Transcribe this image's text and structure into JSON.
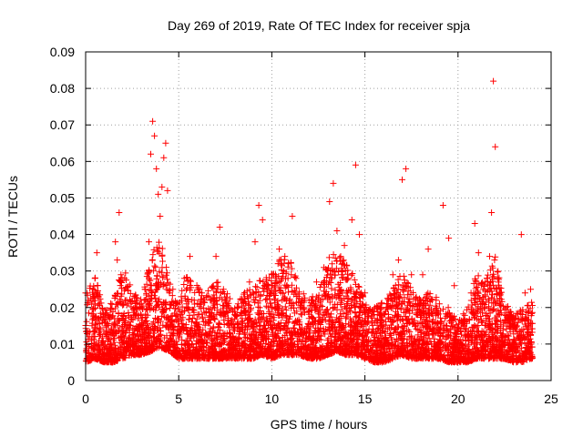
{
  "chart_data": {
    "type": "scatter",
    "title": "Day 269 of 2019, Rate Of TEC Index for receiver spja",
    "xlabel": "GPS time / hours",
    "ylabel": "ROTI / TECUs",
    "xlim": [
      0,
      25
    ],
    "ylim": [
      0,
      0.09
    ],
    "x_ticks": [
      "0",
      "5",
      "10",
      "15",
      "20",
      "25"
    ],
    "y_ticks": [
      "0",
      "0.01",
      "0.02",
      "0.03",
      "0.04",
      "0.05",
      "0.06",
      "0.07",
      "0.08",
      "0.09"
    ],
    "grid": true,
    "marker": "+",
    "marker_color": "#ff0000",
    "series": [
      {
        "name": "ROTI",
        "x": [
          0.0,
          0.1,
          0.2,
          0.3,
          0.5,
          0.6,
          0.7,
          0.8,
          1.0,
          1.2,
          1.4,
          1.6,
          1.7,
          1.8,
          1.9,
          2.0,
          2.1,
          2.2,
          2.4,
          2.6,
          2.8,
          3.0,
          3.2,
          3.4,
          3.5,
          3.6,
          3.7,
          3.8,
          3.9,
          4.0,
          4.1,
          4.2,
          4.3,
          4.4,
          4.5,
          4.7,
          5.0,
          5.3,
          5.6,
          5.9,
          6.2,
          6.5,
          6.8,
          7.0,
          7.2,
          7.4,
          7.6,
          8.0,
          8.4,
          8.8,
          9.1,
          9.3,
          9.5,
          9.8,
          10.1,
          10.4,
          10.7,
          10.9,
          11.1,
          11.3,
          11.6,
          12.0,
          12.4,
          12.8,
          13.1,
          13.3,
          13.5,
          13.7,
          13.9,
          14.1,
          14.3,
          14.5,
          14.7,
          15.0,
          15.4,
          15.8,
          16.2,
          16.5,
          16.8,
          17.0,
          17.2,
          17.5,
          17.8,
          18.1,
          18.4,
          18.7,
          19.0,
          19.2,
          19.5,
          19.8,
          20.1,
          20.4,
          20.7,
          20.9,
          21.1,
          21.3,
          21.5,
          21.7,
          21.8,
          21.9,
          22.0,
          22.2,
          22.5,
          22.8,
          23.1,
          23.4,
          23.6,
          23.8,
          23.9
        ],
        "y": [
          0.024,
          0.006,
          0.012,
          0.009,
          0.028,
          0.035,
          0.017,
          0.008,
          0.007,
          0.011,
          0.009,
          0.038,
          0.033,
          0.046,
          0.029,
          0.013,
          0.028,
          0.01,
          0.016,
          0.011,
          0.014,
          0.021,
          0.025,
          0.038,
          0.062,
          0.071,
          0.067,
          0.058,
          0.051,
          0.045,
          0.053,
          0.061,
          0.065,
          0.052,
          0.024,
          0.014,
          0.016,
          0.028,
          0.034,
          0.013,
          0.021,
          0.016,
          0.011,
          0.034,
          0.042,
          0.025,
          0.013,
          0.018,
          0.022,
          0.027,
          0.038,
          0.048,
          0.044,
          0.02,
          0.029,
          0.036,
          0.034,
          0.032,
          0.045,
          0.028,
          0.018,
          0.022,
          0.027,
          0.031,
          0.049,
          0.054,
          0.041,
          0.034,
          0.037,
          0.028,
          0.044,
          0.059,
          0.04,
          0.024,
          0.013,
          0.009,
          0.02,
          0.029,
          0.033,
          0.055,
          0.058,
          0.029,
          0.018,
          0.029,
          0.036,
          0.019,
          0.021,
          0.048,
          0.039,
          0.026,
          0.008,
          0.012,
          0.024,
          0.043,
          0.035,
          0.011,
          0.017,
          0.034,
          0.046,
          0.082,
          0.064,
          0.018,
          0.012,
          0.009,
          0.014,
          0.04,
          0.024,
          0.011,
          0.025
        ]
      }
    ],
    "envelope_x": [
      0.0,
      0.5,
      1.0,
      1.5,
      2.0,
      2.5,
      3.0,
      3.5,
      4.0,
      4.5,
      5.0,
      5.5,
      6.0,
      6.5,
      7.0,
      7.5,
      8.0,
      8.5,
      9.0,
      9.5,
      10.0,
      10.5,
      11.0,
      11.5,
      12.0,
      12.5,
      13.0,
      13.5,
      14.0,
      14.5,
      15.0,
      15.5,
      16.0,
      16.5,
      17.0,
      17.5,
      18.0,
      18.5,
      19.0,
      19.5,
      20.0,
      20.5,
      21.0,
      21.5,
      22.0,
      22.5,
      23.0,
      23.5,
      24.0
    ],
    "envelope_high": [
      0.025,
      0.03,
      0.02,
      0.022,
      0.032,
      0.025,
      0.022,
      0.034,
      0.04,
      0.028,
      0.022,
      0.03,
      0.026,
      0.024,
      0.028,
      0.025,
      0.02,
      0.024,
      0.026,
      0.028,
      0.03,
      0.034,
      0.033,
      0.025,
      0.022,
      0.025,
      0.034,
      0.035,
      0.033,
      0.028,
      0.022,
      0.02,
      0.022,
      0.025,
      0.03,
      0.025,
      0.022,
      0.025,
      0.022,
      0.02,
      0.016,
      0.02,
      0.03,
      0.028,
      0.034,
      0.022,
      0.018,
      0.02,
      0.022
    ],
    "envelope_low": [
      0.005,
      0.006,
      0.005,
      0.005,
      0.006,
      0.007,
      0.007,
      0.008,
      0.009,
      0.008,
      0.006,
      0.006,
      0.006,
      0.006,
      0.006,
      0.006,
      0.006,
      0.006,
      0.006,
      0.007,
      0.006,
      0.007,
      0.007,
      0.007,
      0.006,
      0.006,
      0.007,
      0.008,
      0.007,
      0.007,
      0.006,
      0.005,
      0.005,
      0.006,
      0.007,
      0.006,
      0.006,
      0.006,
      0.006,
      0.005,
      0.005,
      0.005,
      0.006,
      0.006,
      0.006,
      0.006,
      0.005,
      0.005,
      0.006
    ]
  }
}
